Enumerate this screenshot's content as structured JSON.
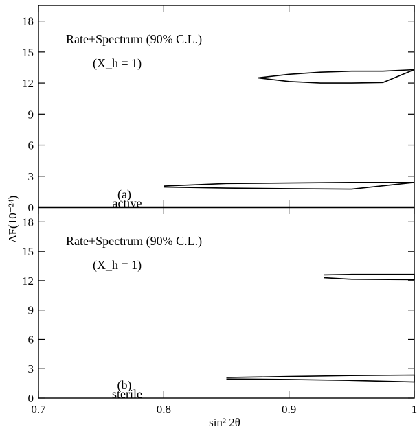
{
  "chart_data": {
    "type": "line",
    "xlabel": "sin² 2θ",
    "ylabel": "ΔF(10⁻²⁴)",
    "xlim": [
      0.7,
      1.0
    ],
    "ylim": [
      0,
      19.5
    ],
    "x_ticks": [
      "0.7",
      "0.8",
      "0.9",
      "1"
    ],
    "y_ticks": [
      "0",
      "3",
      "6",
      "9",
      "12",
      "15",
      "18"
    ],
    "grid": false,
    "panels": [
      {
        "annotation": "Rate+Spectrum (90% C.L.)",
        "annotation_sub": "(X_h = 1)",
        "panel_label": "(a)",
        "case_label": "active",
        "series": [
          {
            "x": [
              0.875,
              0.9,
              0.925,
              0.95,
              0.975,
              1.0,
              0.975,
              0.95,
              0.925,
              0.9,
              0.875
            ],
            "y": [
              12.5,
              12.85,
              13.05,
              13.15,
              13.15,
              13.3,
              12.05,
              12.0,
              12.0,
              12.15,
              12.5
            ]
          },
          {
            "x": [
              0.8,
              0.85,
              0.9,
              0.95,
              1.0,
              0.95,
              0.9,
              0.85,
              0.8
            ],
            "y": [
              2.05,
              2.3,
              2.35,
              2.4,
              2.4,
              1.75,
              1.8,
              1.85,
              1.95
            ]
          }
        ]
      },
      {
        "annotation": "Rate+Spectrum (90% C.L.)",
        "annotation_sub": "(X_h = 1)",
        "panel_label": "(b)",
        "case_label": "sterile",
        "series": [
          {
            "x": [
              0.928,
              0.95,
              1.0,
              1.0,
              0.95,
              0.928
            ],
            "y": [
              12.6,
              12.65,
              12.65,
              12.1,
              12.15,
              12.3
            ]
          },
          {
            "x": [
              0.85,
              0.9,
              0.95,
              1.0,
              1.0,
              0.95,
              0.9,
              0.85
            ],
            "y": [
              2.1,
              2.2,
              2.3,
              2.35,
              1.65,
              1.8,
              1.9,
              1.95
            ]
          }
        ]
      }
    ]
  }
}
